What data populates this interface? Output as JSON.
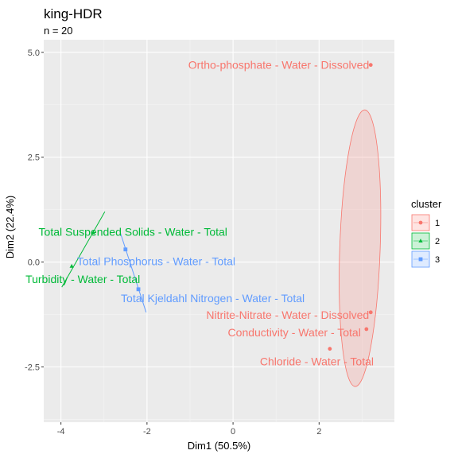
{
  "chart_data": {
    "type": "scatter",
    "title": "king-HDR",
    "subtitle": "n = 20",
    "xlabel": "Dim1 (50.5%)",
    "ylabel": "Dim2 (22.4%)",
    "xlim": [
      -4.4,
      3.75
    ],
    "ylim": [
      -3.82,
      5.3
    ],
    "xticks": [
      -4,
      -2,
      0,
      2
    ],
    "xtick_labels": [
      "-4",
      "-2",
      "0",
      "2"
    ],
    "yticks": [
      -2.5,
      0,
      2.5,
      5
    ],
    "ytick_labels": [
      "-2.5",
      "0.0",
      "2.5",
      "5.0"
    ],
    "legend": {
      "title": "cluster",
      "entries": [
        {
          "label": "1",
          "color": "#F8766D"
        },
        {
          "label": "2",
          "color": "#00BA38"
        },
        {
          "label": "3",
          "color": "#619CFF"
        }
      ]
    },
    "points": [
      {
        "label": "Ortho-phosphate - Water - Dissolved",
        "x": 3.2,
        "y": 4.7,
        "cluster": 1
      },
      {
        "label": "Nitrite-Nitrate - Water - Dissolved",
        "x": 3.2,
        "y": -1.2,
        "cluster": 1
      },
      {
        "label": "Conductivity - Water - Total",
        "x": 3.1,
        "y": -1.6,
        "cluster": 1
      },
      {
        "label": "Chloride - Water - Total",
        "x": 2.25,
        "y": -2.07,
        "cluster": 1
      },
      {
        "label": "Total Suspended Solids - Water - Total",
        "x": -3.25,
        "y": 0.7,
        "cluster": 2
      },
      {
        "label": "Turbidity - Water - Total",
        "x": -3.75,
        "y": -0.1,
        "cluster": 2
      },
      {
        "label": "Total Phosphorus - Water - Total",
        "x": -2.5,
        "y": 0.3,
        "cluster": 3
      },
      {
        "label": "Total Kjeldahl Nitrogen - Water - Total",
        "x": -2.2,
        "y": -0.65,
        "cluster": 3
      }
    ],
    "ellipse": {
      "cluster": 1,
      "center": [
        2.95,
        0.33
      ],
      "semi_axis_x": 0.47,
      "semi_axis_y": 3.3,
      "rotation_deg": 2
    },
    "hull_lines": [
      {
        "cluster": 2,
        "from": [
          -3.98,
          -0.6
        ],
        "to": [
          -2.98,
          1.2
        ]
      },
      {
        "cluster": 3,
        "from": [
          -2.62,
          0.7
        ],
        "to": [
          -2.02,
          -1.2
        ]
      }
    ]
  }
}
